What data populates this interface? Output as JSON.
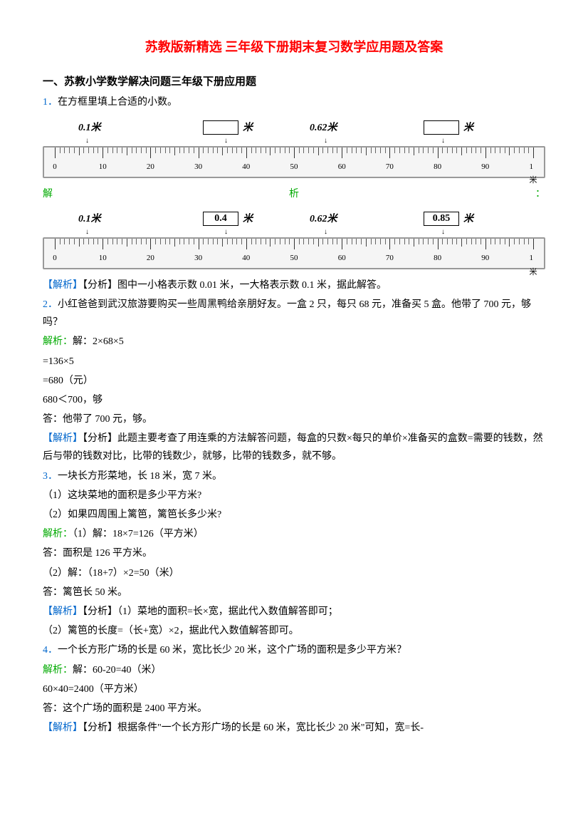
{
  "title": "苏教版新精选 三年级下册期末复习数学应用题及答案",
  "section": "一、苏教小学数学解决问题三年级下册应用题",
  "q1": {
    "num": "1．",
    "text": "在方框里填上合适的小数。",
    "ruler_labels": {
      "l1": "0.1米",
      "l2_box": "",
      "l2_unit": "米",
      "l3": "0.62米",
      "l4_box": "",
      "l4_unit": "米"
    },
    "jiexi_parts": [
      "解",
      "析",
      "："
    ],
    "answer_labels": {
      "l1": "0.1米",
      "l2_box": "0.4",
      "l2_unit": "米",
      "l3": "0.62米",
      "l4_box": "0.85",
      "l4_unit": "米"
    },
    "ruler_nums": [
      "0",
      "10",
      "20",
      "30",
      "40",
      "50",
      "60",
      "70",
      "80",
      "90",
      "1米"
    ],
    "analysis": "【解析】【分析】图中一小格表示数 0.01 米，一大格表示数 0.1 米，据此解答。"
  },
  "q2": {
    "num": "2．",
    "text": "小红爸爸到武汉旅游要购买一些周黑鸭给亲朋好友。一盒 2 只，每只 68 元，准备买 5 盒。他带了 700 元，够吗？",
    "jiexi_label": "解析：",
    "jiexi_text": "解：2×68×5",
    "calc1": "=136×5",
    "calc2": "=680（元）",
    "compare": "680＜700，够",
    "answer": "答：他带了 700 元，够。",
    "analysis": "【解析】【分析】此题主要考查了用连乘的方法解答问题，每盒的只数×每只的单价×准备买的盒数=需要的钱数，然后与带的钱数对比，比带的钱数少，就够，比带的钱数多，就不够。"
  },
  "q3": {
    "num": "3．",
    "text": "一块长方形菜地，长 18 米，宽 7 米。",
    "sub1": "（1）这块菜地的面积是多少平方米?",
    "sub2": "（2）如果四周围上篱笆，篱笆长多少米?",
    "jiexi_label": "解析：",
    "jiexi_text": "（1）解：18×7=126（平方米）",
    "answer1": "答：面积是 126 平方米。",
    "calc2": "（2）解：（18+7）×2=50（米）",
    "answer2": "答：篱笆长 50 米。",
    "analysis1": "【解析】【分析】（1）菜地的面积=长×宽，据此代入数值解答即可；",
    "analysis2": "（2）篱笆的长度=（长+宽）×2，据此代入数值解答即可。"
  },
  "q4": {
    "num": "4．",
    "text": "一个长方形广场的长是 60 米，宽比长少 20 米，这个广场的面积是多少平方米？",
    "jiexi_label": "解析：",
    "jiexi_text": "解：60-20=40（米）",
    "calc": "60×40=2400（平方米）",
    "answer": "答：这个广场的面积是 2400 平方米。",
    "analysis": "【解析】【分析】根据条件\"一个长方形广场的长是 60 米，宽比长少 20 米\"可知，宽=长-"
  }
}
